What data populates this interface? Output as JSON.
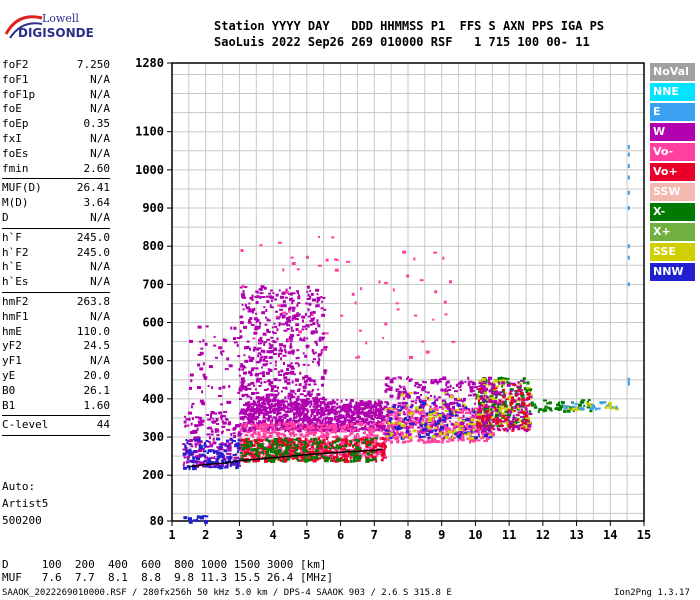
{
  "logo": {
    "line1": "Lowell",
    "line2": "DIGISONDE"
  },
  "header": {
    "line1": "Station YYYY DAY   DDD HHMMSS P1  FFS S AXN PPS IGA PS",
    "line2": "SaoLuis 2022 Sep26 269 010000 RSF   1 715 100 00- 11"
  },
  "params": [
    {
      "name": "foF2",
      "value": "7.250"
    },
    {
      "name": "foF1",
      "value": "N/A"
    },
    {
      "name": "foF1p",
      "value": "N/A"
    },
    {
      "name": "foE",
      "value": "N/A"
    },
    {
      "name": "foEp",
      "value": "0.35"
    },
    {
      "name": "fxI",
      "value": "N/A"
    },
    {
      "name": "foEs",
      "value": "N/A"
    },
    {
      "name": "fmin",
      "value": "2.60"
    },
    {
      "name": "MUF(D)",
      "value": "26.41"
    },
    {
      "name": "M(D)",
      "value": "3.64"
    },
    {
      "name": "D",
      "value": "N/A"
    },
    {
      "name": "h`F",
      "value": "245.0"
    },
    {
      "name": "h`F2",
      "value": "245.0"
    },
    {
      "name": "h`E",
      "value": "N/A"
    },
    {
      "name": "h`Es",
      "value": "N/A"
    },
    {
      "name": "hmF2",
      "value": "263.8"
    },
    {
      "name": "hmF1",
      "value": "N/A"
    },
    {
      "name": "hmE",
      "value": "110.0"
    },
    {
      "name": "yF2",
      "value": "24.5"
    },
    {
      "name": "yF1",
      "value": "N/A"
    },
    {
      "name": "yE",
      "value": "20.0"
    },
    {
      "name": "B0",
      "value": "26.1"
    },
    {
      "name": "B1",
      "value": "1.60"
    },
    {
      "name": "C-level",
      "value": "44"
    }
  ],
  "autoscaling": {
    "line1": "Auto:",
    "line2": "Artist5",
    "line3": "500200"
  },
  "legend": [
    {
      "label": "NoVal",
      "color": "#a0a0a0"
    },
    {
      "label": "NNE",
      "color": "#00e5ff"
    },
    {
      "label": "E",
      "color": "#3aa0f0"
    },
    {
      "label": "W",
      "color": "#b000b0"
    },
    {
      "label": "Vo-",
      "color": "#ff40a0"
    },
    {
      "label": "Vo+",
      "color": "#e8002a"
    },
    {
      "label": "SSW",
      "color": "#f4b8b0"
    },
    {
      "label": "X-",
      "color": "#007a00"
    },
    {
      "label": "X+",
      "color": "#70b040"
    },
    {
      "label": "SSE",
      "color": "#d0d000"
    },
    {
      "label": "NNW",
      "color": "#2020d0"
    }
  ],
  "footer": {
    "dline": "D     100  200  400  600  800 1000 1500 3000 [km]",
    "mufline": "MUF   7.6  7.7  8.1  8.8  9.8 11.3 15.5 26.4 [MHz]",
    "fileinfo": "SAAOK_2022269010000.RSF / 280fx256h 50 kHz 5.0 km / DPS-4 SAAOK 903 / 2.6 S 315.8 E",
    "version": "Ion2Png 1.3.17"
  },
  "chart_data": {
    "type": "scatter",
    "x_ticks": [
      1,
      2,
      3,
      4,
      5,
      6,
      7,
      8,
      9,
      10,
      11,
      12,
      13,
      14,
      15
    ],
    "y_ticks": [
      80,
      200,
      300,
      400,
      500,
      600,
      700,
      800,
      900,
      1000,
      1100,
      1280
    ],
    "xlim": [
      1,
      15
    ],
    "ylim": [
      80,
      1280
    ],
    "grid": true,
    "legend_position": "right",
    "trace": {
      "x": [
        1.5,
        2.0,
        2.6,
        3.0,
        3.5,
        4.0,
        4.5,
        5.0,
        5.5,
        6.0,
        6.5,
        7.0,
        7.25
      ],
      "y": [
        222,
        228,
        232,
        238,
        242,
        246,
        250,
        254,
        257,
        260,
        263,
        265,
        268
      ]
    },
    "clusters": [
      {
        "x": [
          1.3,
          3.0
        ],
        "y": [
          225,
          370
        ],
        "color": "#b000b0",
        "n": 220
      },
      {
        "x": [
          1.3,
          3.0
        ],
        "y": [
          220,
          300
        ],
        "color": "#2020d0",
        "n": 120
      },
      {
        "x": [
          3.0,
          7.3
        ],
        "y": [
          320,
          400
        ],
        "color": "#b000b0",
        "n": 900
      },
      {
        "x": [
          3.0,
          7.3
        ],
        "y": [
          250,
          340
        ],
        "color": "#ff40a0",
        "n": 600
      },
      {
        "x": [
          3.0,
          7.3
        ],
        "y": [
          240,
          300
        ],
        "color": "#e8002a",
        "n": 350
      },
      {
        "x": [
          3.0,
          5.5
        ],
        "y": [
          400,
          700
        ],
        "color": "#b000b0",
        "n": 500
      },
      {
        "x": [
          3.0,
          7.0
        ],
        "y": [
          240,
          300
        ],
        "color": "#007a00",
        "n": 200
      },
      {
        "x": [
          7.3,
          10.5
        ],
        "y": [
          310,
          460
        ],
        "color": "#b000b0",
        "n": 420
      },
      {
        "x": [
          7.3,
          10.5
        ],
        "y": [
          290,
          380
        ],
        "color": "#ff40a0",
        "n": 300
      },
      {
        "x": [
          7.3,
          10.5
        ],
        "y": [
          300,
          400
        ],
        "color": "#2020d0",
        "n": 120
      },
      {
        "x": [
          7.3,
          10.5
        ],
        "y": [
          300,
          420
        ],
        "color": "#d0d000",
        "n": 90
      },
      {
        "x": [
          10.0,
          11.6
        ],
        "y": [
          330,
          460
        ],
        "color": "#007a00",
        "n": 160
      },
      {
        "x": [
          10.0,
          11.6
        ],
        "y": [
          330,
          460
        ],
        "color": "#d0d000",
        "n": 110
      },
      {
        "x": [
          10.0,
          11.6
        ],
        "y": [
          320,
          450
        ],
        "color": "#b000b0",
        "n": 140
      },
      {
        "x": [
          10.0,
          11.6
        ],
        "y": [
          320,
          440
        ],
        "color": "#e8002a",
        "n": 90
      },
      {
        "x": [
          11.6,
          13.5
        ],
        "y": [
          370,
          400
        ],
        "color": "#007a00",
        "n": 60
      },
      {
        "x": [
          12.5,
          14.2
        ],
        "y": [
          375,
          395
        ],
        "color": "#d0d000",
        "n": 20
      },
      {
        "x": [
          12.5,
          14.2
        ],
        "y": [
          375,
          395
        ],
        "color": "#3aa0f0",
        "n": 20
      },
      {
        "x": [
          3.0,
          9.5
        ],
        "y": [
          500,
          850
        ],
        "color": "#ff40a0",
        "n": 60
      },
      {
        "x": [
          1.5,
          3.0
        ],
        "y": [
          380,
          600
        ],
        "color": "#b000b0",
        "n": 60
      },
      {
        "x": [
          1.3,
          2.0
        ],
        "y": [
          80,
          100
        ],
        "color": "#2020d0",
        "n": 15
      }
    ],
    "e_column": {
      "x": 14.55,
      "y": [
        440,
        450,
        700,
        770,
        800,
        900,
        940,
        980,
        1010,
        1040,
        1060
      ],
      "color": "#3aa0f0"
    }
  }
}
